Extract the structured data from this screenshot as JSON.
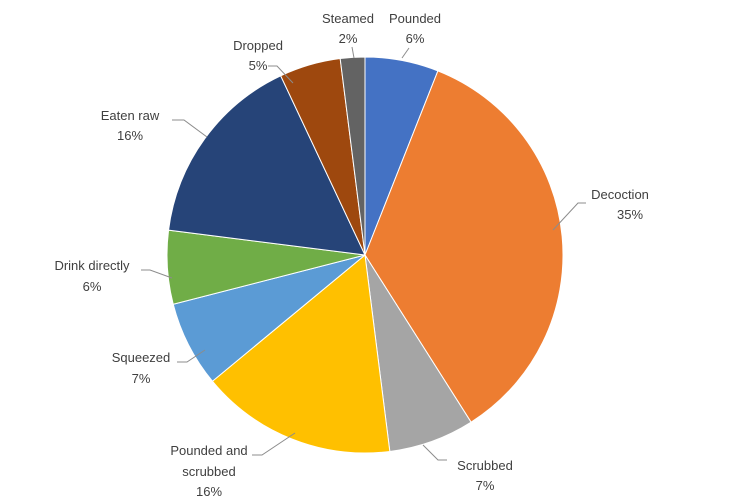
{
  "chart_data": {
    "type": "pie",
    "title": "",
    "start_angle_deg": 0,
    "direction": "clockwise",
    "slices": [
      {
        "name": "Pounded",
        "value": 6,
        "label": "6%",
        "color": "#4472C4"
      },
      {
        "name": "Decoction",
        "value": 35,
        "label": "35%",
        "color": "#ED7D31"
      },
      {
        "name": "Scrubbed",
        "value": 7,
        "label": "7%",
        "color": "#A5A5A5"
      },
      {
        "name": "Pounded and scrubbed",
        "value": 16,
        "label": "16%",
        "color": "#FFC000"
      },
      {
        "name": "Squeezed",
        "value": 7,
        "label": "7%",
        "color": "#5B9BD5"
      },
      {
        "name": "Drink directly",
        "value": 6,
        "label": "6%",
        "color": "#70AD47"
      },
      {
        "name": "Eaten raw",
        "value": 16,
        "label": "16%",
        "color": "#264478"
      },
      {
        "name": "Dropped",
        "value": 5,
        "label": "5%",
        "color": "#9E480E"
      },
      {
        "name": "Steamed",
        "value": 2,
        "label": "2%",
        "color": "#636363"
      }
    ]
  }
}
